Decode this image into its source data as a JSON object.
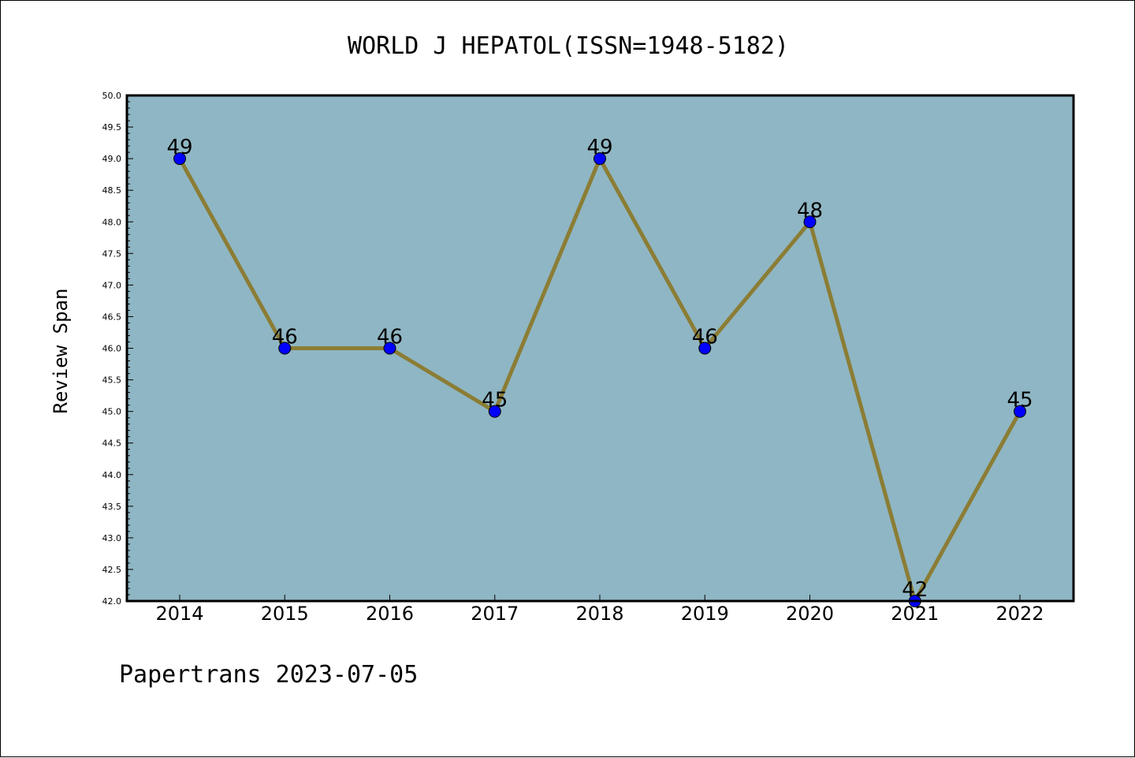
{
  "chart_data": {
    "type": "line",
    "title": "WORLD J HEPATOL(ISSN=1948-5182)",
    "xlabel": "",
    "ylabel": "Review Span",
    "categories": [
      "2014",
      "2015",
      "2016",
      "2017",
      "2018",
      "2019",
      "2020",
      "2021",
      "2022"
    ],
    "values": [
      49,
      46,
      46,
      45,
      49,
      46,
      48,
      42,
      45
    ],
    "data_labels": [
      "49",
      "46",
      "46",
      "45",
      "49",
      "46",
      "48",
      "42",
      "45"
    ],
    "ylim": [
      42.0,
      50.0
    ],
    "yticks": [
      "42.0",
      "42.5",
      "43.0",
      "43.5",
      "44.0",
      "44.5",
      "45.0",
      "45.5",
      "46.0",
      "46.5",
      "47.0",
      "47.5",
      "48.0",
      "48.5",
      "49.0",
      "49.5",
      "50.0"
    ],
    "grid": false,
    "colors": {
      "plot_background": "#8fb6c4",
      "line": "#8b7d35",
      "marker": "#0000ff"
    }
  },
  "footer": {
    "text": "Papertrans 2023-07-05"
  }
}
